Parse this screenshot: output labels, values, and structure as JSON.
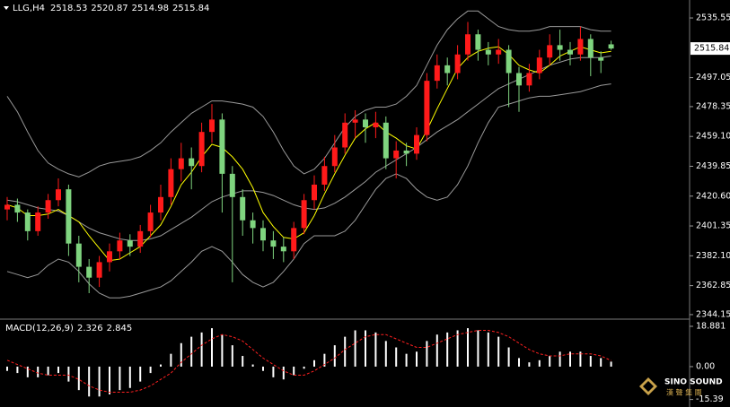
{
  "chart_data": [
    {
      "type": "candlestick",
      "title": "LLG,H4",
      "open": [
        2412,
        2415,
        2410,
        2398,
        2410,
        2418,
        2425,
        2390,
        2375,
        2368,
        2378,
        2385,
        2392,
        2388,
        2398,
        2410,
        2420,
        2438,
        2445,
        2440,
        2462,
        2470,
        2435,
        2420,
        2405,
        2400,
        2392,
        2388,
        2385,
        2400,
        2418,
        2428,
        2440,
        2452,
        2468,
        2470,
        2465,
        2468,
        2445,
        2450,
        2448,
        2460,
        2495,
        2505,
        2500,
        2512,
        2525,
        2515,
        2512,
        2515,
        2500,
        2492,
        2500,
        2510,
        2518,
        2515,
        2512,
        2522,
        2510,
        2518.53
      ],
      "high": [
        2420,
        2419,
        2412,
        2414,
        2422,
        2432,
        2428,
        2395,
        2380,
        2382,
        2390,
        2397,
        2396,
        2402,
        2415,
        2428,
        2445,
        2455,
        2452,
        2468,
        2480,
        2474,
        2440,
        2425,
        2410,
        2405,
        2398,
        2394,
        2404,
        2422,
        2434,
        2446,
        2460,
        2474,
        2476,
        2474,
        2475,
        2472,
        2456,
        2455,
        2465,
        2500,
        2512,
        2510,
        2518,
        2533,
        2528,
        2520,
        2522,
        2518,
        2504,
        2506,
        2515,
        2525,
        2528,
        2520,
        2530,
        2525,
        2514,
        2520.87
      ],
      "low": [
        2405,
        2404,
        2392,
        2395,
        2406,
        2414,
        2382,
        2365,
        2358,
        2362,
        2372,
        2380,
        2382,
        2384,
        2394,
        2405,
        2415,
        2430,
        2425,
        2436,
        2455,
        2410,
        2365,
        2395,
        2390,
        2385,
        2380,
        2378,
        2380,
        2396,
        2412,
        2424,
        2436,
        2448,
        2458,
        2455,
        2458,
        2438,
        2432,
        2440,
        2444,
        2456,
        2490,
        2492,
        2496,
        2508,
        2508,
        2505,
        2506,
        2478,
        2475,
        2488,
        2496,
        2505,
        2508,
        2505,
        2508,
        2498,
        2500,
        2514.98
      ],
      "close": [
        2415,
        2410,
        2398,
        2410,
        2418,
        2425,
        2390,
        2375,
        2368,
        2378,
        2385,
        2392,
        2388,
        2398,
        2410,
        2420,
        2438,
        2445,
        2440,
        2462,
        2470,
        2435,
        2420,
        2405,
        2400,
        2392,
        2388,
        2385,
        2400,
        2418,
        2428,
        2440,
        2452,
        2468,
        2470,
        2465,
        2468,
        2445,
        2450,
        2448,
        2460,
        2495,
        2505,
        2500,
        2512,
        2525,
        2515,
        2512,
        2515,
        2500,
        2492,
        2500,
        2510,
        2518,
        2515,
        2512,
        2522,
        2510,
        2508,
        2515.84
      ],
      "up_color": "#ff1a1a",
      "down_color": "#7fd47f",
      "overlays": [
        {
          "color": "#9a9a9a",
          "values": [
            2485,
            2475,
            2462,
            2450,
            2442,
            2438,
            2435,
            2433,
            2436,
            2440,
            2442,
            2443,
            2444,
            2446,
            2450,
            2455,
            2462,
            2468,
            2474,
            2478,
            2482,
            2482,
            2481,
            2480,
            2478,
            2472,
            2462,
            2450,
            2440,
            2435,
            2438,
            2445,
            2455,
            2465,
            2472,
            2476,
            2478,
            2478,
            2480,
            2485,
            2492,
            2505,
            2518,
            2528,
            2535,
            2540,
            2540,
            2535,
            2530,
            2528,
            2527,
            2527,
            2528,
            2530,
            2530,
            2530,
            2530,
            2528,
            2527,
            2527
          ]
        },
        {
          "color": "#9a9a9a",
          "values": [
            2418,
            2417,
            2415,
            2413,
            2412,
            2411,
            2408,
            2404,
            2400,
            2397,
            2395,
            2393,
            2392,
            2392,
            2393,
            2395,
            2399,
            2403,
            2407,
            2412,
            2417,
            2420,
            2422,
            2424,
            2424,
            2423,
            2421,
            2418,
            2415,
            2413,
            2412,
            2413,
            2416,
            2420,
            2425,
            2430,
            2436,
            2440,
            2444,
            2448,
            2452,
            2457,
            2462,
            2466,
            2470,
            2475,
            2480,
            2485,
            2490,
            2493,
            2496,
            2499,
            2502,
            2505,
            2507,
            2509,
            2510,
            2510,
            2510,
            2511
          ]
        },
        {
          "color": "#9a9a9a",
          "values": [
            2372,
            2370,
            2368,
            2370,
            2376,
            2380,
            2378,
            2372,
            2364,
            2358,
            2355,
            2355,
            2356,
            2358,
            2360,
            2362,
            2366,
            2372,
            2378,
            2385,
            2388,
            2385,
            2378,
            2370,
            2365,
            2362,
            2365,
            2372,
            2380,
            2390,
            2395,
            2395,
            2395,
            2398,
            2405,
            2415,
            2425,
            2432,
            2435,
            2432,
            2425,
            2420,
            2418,
            2420,
            2428,
            2440,
            2455,
            2468,
            2478,
            2480,
            2482,
            2484,
            2485,
            2485,
            2486,
            2487,
            2488,
            2490,
            2492,
            2493
          ]
        },
        {
          "color": "#ffff00",
          "values": [
            2415,
            2413,
            2408,
            2408,
            2409,
            2412,
            2408,
            2404,
            2395,
            2387,
            2379,
            2380,
            2384,
            2388,
            2395,
            2402,
            2414,
            2428,
            2436,
            2446,
            2454,
            2452,
            2446,
            2438,
            2426,
            2410,
            2401,
            2394,
            2393,
            2397,
            2408,
            2422,
            2435,
            2447,
            2458,
            2464,
            2468,
            2462,
            2458,
            2453,
            2451,
            2463,
            2477,
            2490,
            2503,
            2510,
            2514,
            2516,
            2517,
            2512,
            2505,
            2502,
            2500,
            2505,
            2511,
            2514,
            2517,
            2515,
            2513,
            2514
          ]
        }
      ],
      "ylim": [
        2341.8,
        2545.4
      ],
      "yticks": [
        2535.55,
        2497.05,
        2478.35,
        {
          "value": 2459.1,
          "label": "2459.10"
        },
        2439.85,
        {
          "value": 2420.6,
          "label": "2420.60"
        },
        2401.35,
        {
          "value": 2382.1,
          "label": "2382.10"
        },
        2362.85,
        2344.15
      ]
    },
    {
      "type": "macd",
      "title": "MACD(12,26,9)",
      "histogram": {
        "color": "#ffffff",
        "values": [
          -2,
          -3,
          -5,
          -5,
          -4,
          -3,
          -7,
          -11,
          -14,
          -14,
          -13,
          -11,
          -10,
          -7,
          -3,
          1,
          6,
          11,
          14,
          16,
          18,
          15,
          10,
          5,
          1,
          -2,
          -5,
          -6,
          -4,
          -1,
          3,
          6,
          10,
          14,
          17,
          17,
          16,
          12,
          9,
          6,
          7,
          12,
          15,
          16,
          17,
          18,
          17,
          16,
          14,
          9,
          4,
          2,
          3,
          5,
          7,
          7,
          7,
          5,
          4,
          2.326
        ]
      },
      "signal": {
        "color": "#ff2020",
        "values": [
          3,
          1,
          -1,
          -3,
          -4,
          -4,
          -4,
          -6,
          -9,
          -11,
          -12,
          -12,
          -12,
          -11,
          -9,
          -6,
          -3,
          2,
          6,
          10,
          13,
          15,
          14,
          12,
          8,
          4,
          1,
          -2,
          -4,
          -4,
          -2,
          1,
          4,
          8,
          11,
          14,
          15,
          15,
          13,
          11,
          9,
          9,
          11,
          13,
          15,
          16,
          17,
          17,
          16,
          14,
          11,
          8,
          6,
          5,
          5,
          6,
          6,
          6,
          5,
          2.845
        ]
      },
      "ylim": [
        -18.5,
        21.4
      ],
      "yticks": [
        18.881,
        {
          "value": 0,
          "label": "0.00"
        },
        -15.39
      ]
    }
  ],
  "logo": {
    "name": "SINO SOUND",
    "subtitle": "漢 聲 集 團"
  }
}
